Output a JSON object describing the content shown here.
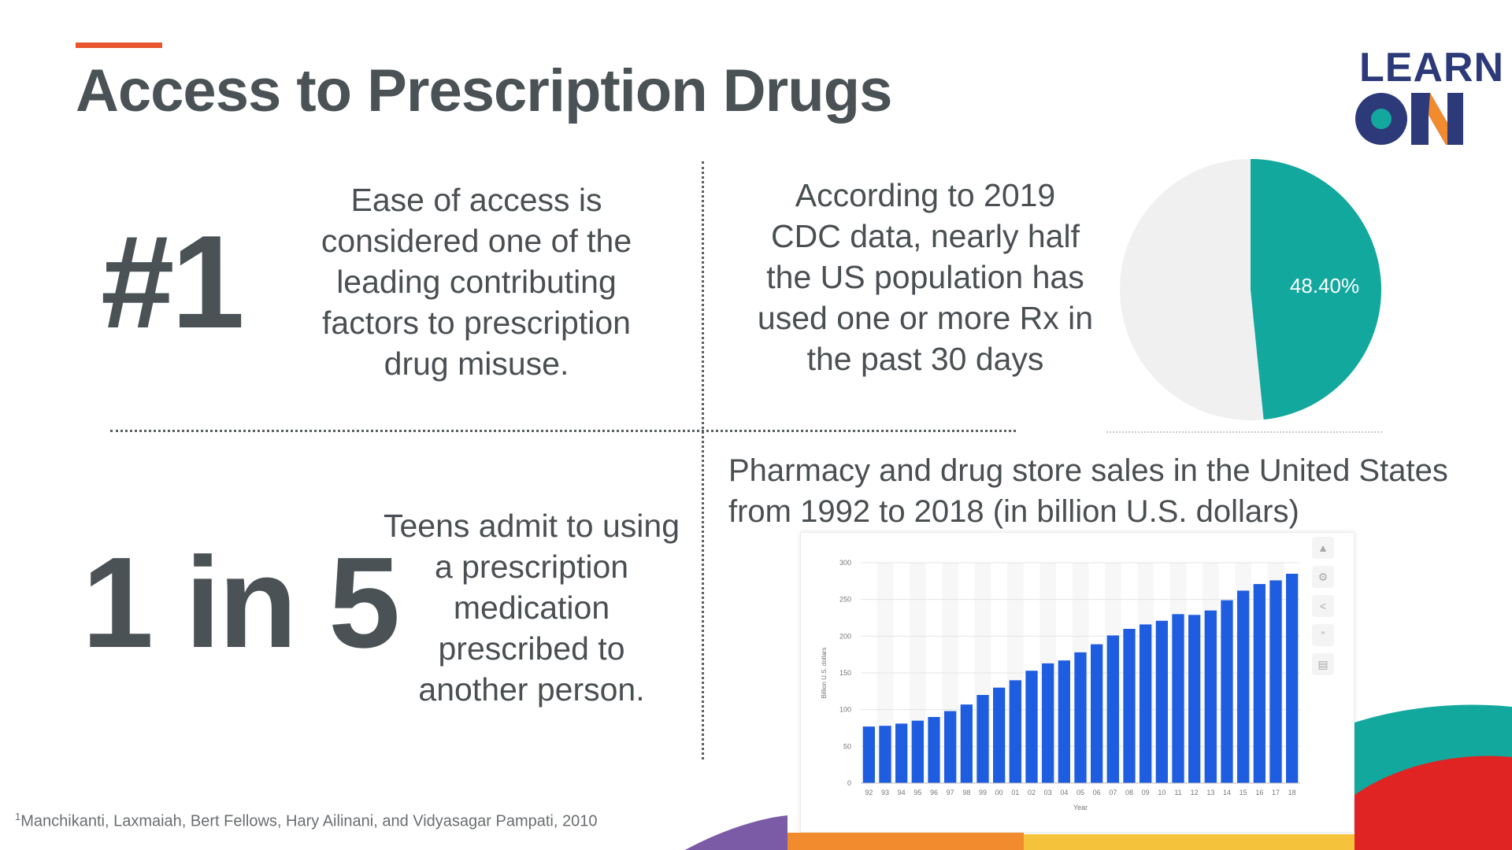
{
  "slide": {
    "title": "Access to Prescription Drugs",
    "logo": {
      "line1": "LEARN",
      "line2": "ON"
    },
    "stat1": {
      "big": "#1",
      "text": "Ease of access is\nconsidered one of the\nleading contributing\nfactors to prescription\ndrug misuse."
    },
    "stat2": {
      "big": "1 in 5",
      "text": "Teens admit to using\na prescription\nmedication\nprescribed to\nanother person."
    },
    "stat3": {
      "text": "According to 2019\nCDC data, nearly half\nthe US population has\nused one or more Rx in\nthe past 30 days"
    },
    "pie": {
      "label": "48.40%",
      "value": 48.4,
      "color": "#13a89e",
      "rest_color": "#f0f0f0"
    },
    "chart_title": "Pharmacy and drug store sales in the United States\nfrom 1992 to 2018 (in billion U.S. dollars)",
    "footnote": {
      "sup": "1",
      "text": "Manchikanti, Laxmaiah, Bert Fellows, Hary Ailinani, and Vidyasagar Pampati, 2010"
    },
    "toolbar_icons": [
      "bell-icon",
      "gear-icon",
      "share-icon",
      "quote-icon",
      "print-icon"
    ],
    "colors": {
      "accent": "#e8572f",
      "text": "#4a5256",
      "bar": "#1f5de0",
      "teal": "#13a89e",
      "navy": "#2d3a7a"
    }
  },
  "chart_data": [
    {
      "type": "pie",
      "values": [
        48.4,
        51.6
      ],
      "labels": [
        "48.40%",
        ""
      ],
      "colors": [
        "#13a89e",
        "#f0f0f0"
      ]
    },
    {
      "type": "bar",
      "title": "Pharmacy and drug store sales in the United States from 1992 to 2018 (in billion U.S. dollars)",
      "xlabel": "Year",
      "ylabel": "Billion U.S. dollars",
      "categories": [
        "92",
        "93",
        "94",
        "95",
        "96",
        "97",
        "98",
        "99",
        "00",
        "01",
        "02",
        "03",
        "04",
        "05",
        "06",
        "07",
        "08",
        "09",
        "10",
        "11",
        "12",
        "13",
        "14",
        "15",
        "16",
        "17",
        "18"
      ],
      "values": [
        77,
        78,
        81,
        85,
        90,
        98,
        107,
        120,
        130,
        140,
        153,
        163,
        167,
        178,
        189,
        201,
        210,
        216,
        221,
        230,
        229,
        235,
        249,
        262,
        271,
        276,
        285
      ],
      "yticks": [
        0,
        50,
        100,
        150,
        200,
        250,
        300
      ],
      "ylim": [
        0,
        300
      ],
      "grid": true,
      "color": "#1f5de0"
    }
  ]
}
